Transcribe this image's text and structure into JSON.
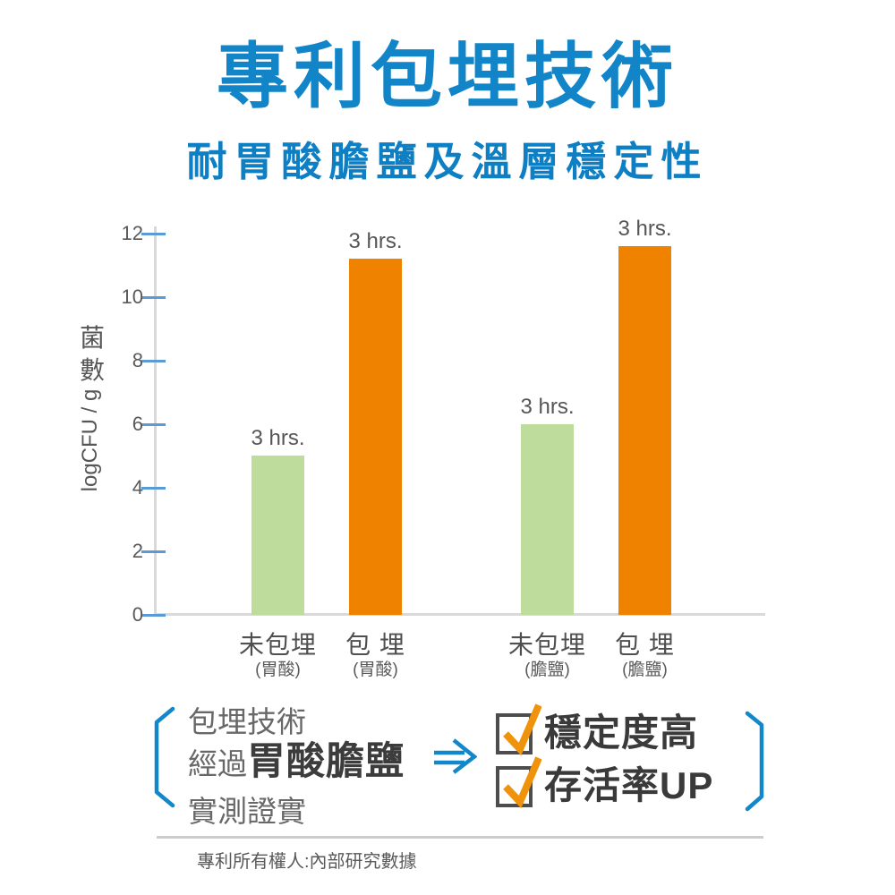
{
  "header": {
    "title": "專利包埋技術",
    "subtitle": "耐胃酸膽鹽及溫層穩定性"
  },
  "chart_data": {
    "type": "bar",
    "title": "耐胃酸膽鹽及溫層穩定性",
    "ylabel_cn": "菌數",
    "ylabel_en": "logCFU / g",
    "ylim": [
      0,
      12
    ],
    "yticks": [
      0,
      2,
      4,
      6,
      8,
      10,
      12
    ],
    "grid": false,
    "legend": "none",
    "bars": [
      {
        "category": "未包埋",
        "condition": "(胃酸)",
        "value": 5.0,
        "label": "3 hrs.",
        "color": "#bedd9d"
      },
      {
        "category": "包 埋",
        "condition": "(胃酸)",
        "value": 11.2,
        "label": "3 hrs.",
        "color": "#ef8300"
      },
      {
        "category": "未包埋",
        "condition": "(膽鹽)",
        "value": 6.0,
        "label": "3 hrs.",
        "color": "#bedd9d"
      },
      {
        "category": "包 埋",
        "condition": "(膽鹽)",
        "value": 11.6,
        "label": "3 hrs.",
        "color": "#ef8300"
      }
    ]
  },
  "callout": {
    "line1": "包埋技術",
    "line2_regular": "經過",
    "line2_bold": "胃酸膽鹽",
    "line3": "實測證實",
    "benefits": [
      {
        "label": "穩定度高",
        "checked": true
      },
      {
        "label": "存活率UP",
        "checked": true
      }
    ]
  },
  "footer": {
    "text": "專利所有權人:內部研究數據"
  },
  "colors": {
    "title_blue": "#1285c8",
    "bar_green": "#bedd9d",
    "bar_orange": "#ef8300",
    "tick_blue": "#5b9bd5",
    "axis_gray": "#d9d9d9",
    "check_orange": "#f0930c",
    "bracket_blue": "#1287c9"
  },
  "icons": {
    "arrow": "double-arrow-right",
    "benefit": "checked-checkbox"
  }
}
